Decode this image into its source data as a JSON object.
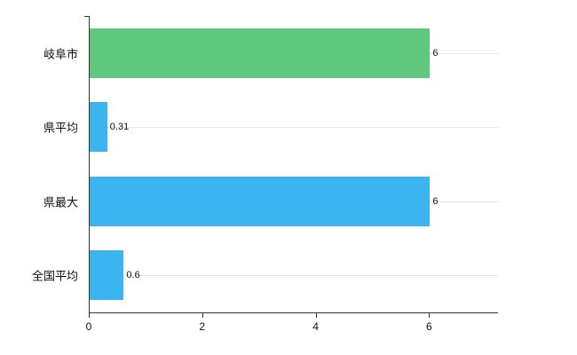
{
  "chart_data": {
    "type": "bar",
    "orientation": "horizontal",
    "title": "",
    "xlabel": "",
    "ylabel": "",
    "categories": [
      "岐阜市",
      "県平均",
      "県最大",
      "全国平均"
    ],
    "values": [
      6,
      0.31,
      6,
      0.6
    ],
    "value_labels": [
      "6",
      "0.31",
      "6",
      "0.6"
    ],
    "colors": [
      "#5fc77e",
      "#3bb4ef",
      "#3bb4ef",
      "#3bb4ef"
    ],
    "xlim": [
      0,
      7.2
    ],
    "xticks": [
      0,
      2,
      4,
      6
    ],
    "xtick_labels": [
      "0",
      "2",
      "4",
      "6"
    ],
    "grid": "horizontal",
    "legend": "none",
    "background_color": "#ffffff",
    "axis_color": "#333333",
    "gridline_color": "#e5e5e5"
  }
}
